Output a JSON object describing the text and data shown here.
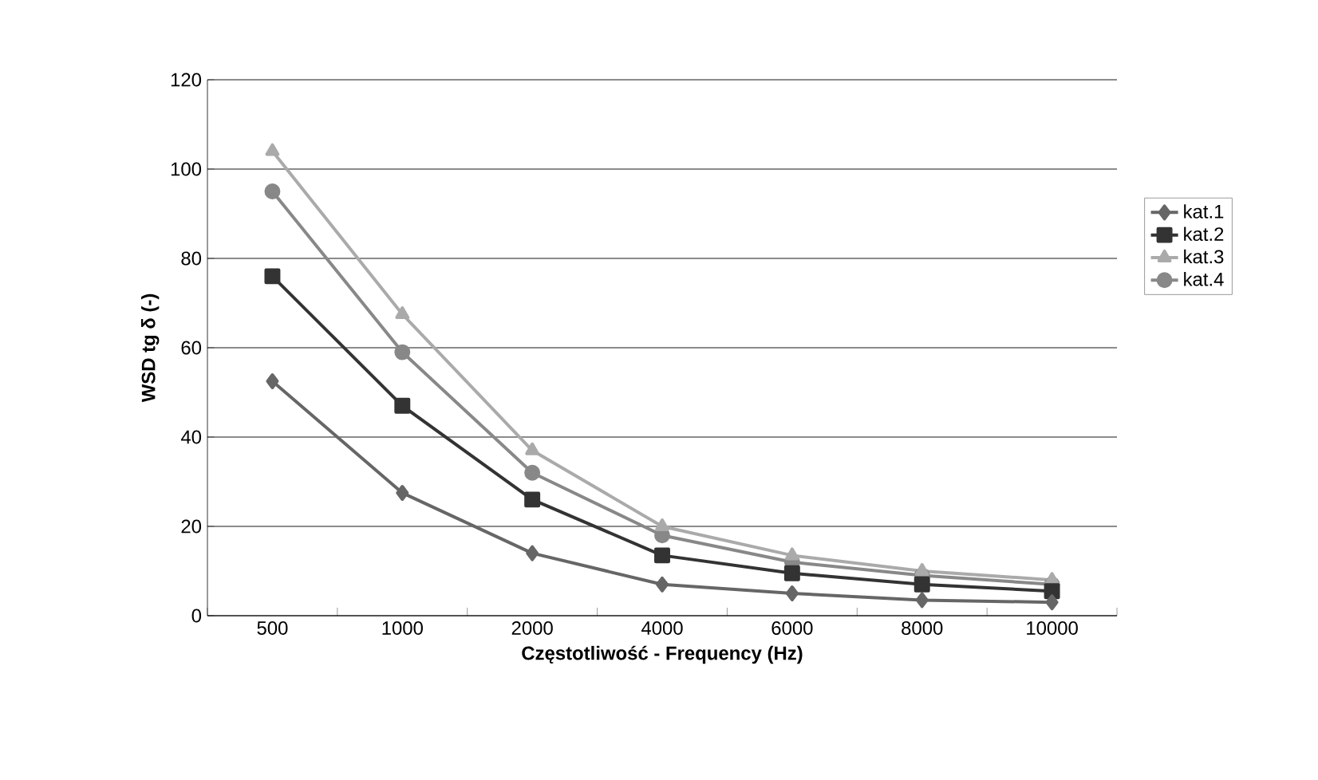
{
  "chart_data": {
    "type": "line",
    "xlabel": "Częstotliwość - Frequency (Hz)",
    "ylabel": "WSD tg δ (-)",
    "categories": [
      "500",
      "1000",
      "2000",
      "4000",
      "6000",
      "8000",
      "10000"
    ],
    "series": [
      {
        "name": "kat.1",
        "color": "#666666",
        "marker": "diamond",
        "values": [
          52.5,
          27.5,
          14,
          7,
          5,
          3.5,
          3
        ]
      },
      {
        "name": "kat.2",
        "color": "#333333",
        "marker": "square",
        "values": [
          76,
          47,
          26,
          13.5,
          9.5,
          7,
          5.5
        ]
      },
      {
        "name": "kat.3",
        "color": "#aaaaaa",
        "marker": "triangle",
        "values": [
          104,
          67.5,
          37,
          20,
          13.5,
          10,
          8
        ]
      },
      {
        "name": "kat.4",
        "color": "#888888",
        "marker": "circle",
        "values": [
          95,
          59,
          32,
          18,
          12,
          9,
          7
        ]
      }
    ],
    "ylim": [
      0,
      120
    ],
    "yticks": [
      0,
      20,
      40,
      60,
      80,
      100,
      120
    ],
    "grid": "y",
    "legend": "right",
    "line_style": "solid"
  }
}
